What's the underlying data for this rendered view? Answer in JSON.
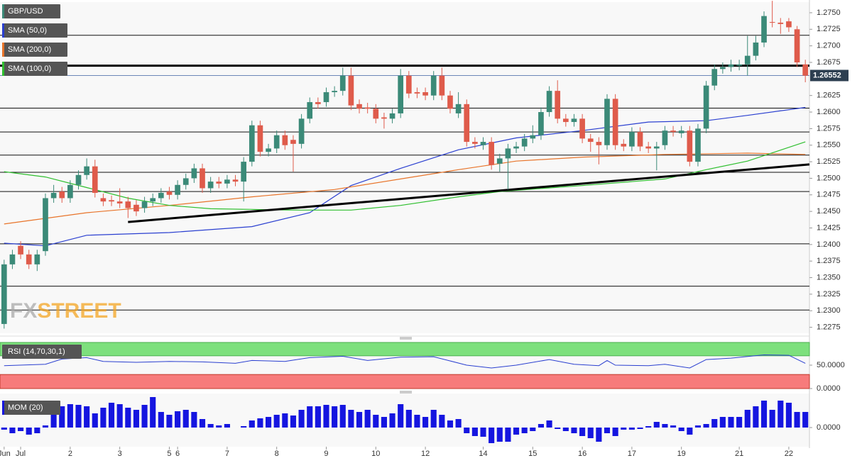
{
  "chart_data": [
    {
      "type": "candlestick",
      "name": "GBP/USD",
      "up_color": "#3b8a78",
      "down_color": "#df5b4b",
      "xlim": [
        -0.5,
        97.5
      ],
      "ylim": [
        1.2266,
        1.2766
      ],
      "xticks": [
        {
          "value": 0,
          "label": "Jun"
        },
        {
          "value": 2,
          "label": "Jul"
        },
        {
          "value": 8,
          "label": "2"
        },
        {
          "value": 14,
          "label": "3"
        },
        {
          "value": 20,
          "label": "5"
        },
        {
          "value": 21,
          "label": "6"
        },
        {
          "value": 27,
          "label": "7"
        },
        {
          "value": 33,
          "label": "8"
        },
        {
          "value": 39,
          "label": "9"
        },
        {
          "value": 45,
          "label": "10"
        },
        {
          "value": 51,
          "label": "12"
        },
        {
          "value": 58,
          "label": "14"
        },
        {
          "value": 64,
          "label": "15"
        },
        {
          "value": 70,
          "label": "16"
        },
        {
          "value": 76,
          "label": "17"
        },
        {
          "value": 82,
          "label": "19"
        },
        {
          "value": 89,
          "label": "21"
        },
        {
          "value": 95,
          "label": "22"
        }
      ],
      "yticks": [
        {
          "value": 1.275,
          "label": "1.2750"
        },
        1.2725,
        {
          "value": 1.27,
          "label": "1.2700"
        },
        1.2675,
        1.2625,
        {
          "value": 1.26,
          "label": "1.2600"
        },
        1.2575,
        {
          "value": 1.255,
          "label": "1.2550"
        },
        1.2525,
        {
          "value": 1.25,
          "label": "1.2500"
        },
        1.2475,
        {
          "value": 1.245,
          "label": "1.2450"
        },
        1.2425,
        {
          "value": 1.24,
          "label": "1.2400"
        },
        1.2375,
        {
          "value": 1.235,
          "label": "1.2350"
        },
        1.2325,
        {
          "value": 1.23,
          "label": "1.2300"
        },
        1.2275
      ],
      "levels": [
        1.2716,
        1.2606,
        1.257,
        1.2535,
        1.2509,
        1.248,
        1.2401,
        1.2337,
        1.2301
      ],
      "resistance": 1.267,
      "last_price": 1.26552,
      "trendline": {
        "x": [
          15,
          97.5
        ],
        "y": [
          1.2434,
          1.2521
        ]
      },
      "watermark": [
        "FX",
        "STREET"
      ],
      "open": [
        1.228,
        1.237,
        1.2398,
        1.2385,
        1.237,
        1.239,
        1.247,
        1.248,
        1.247,
        1.249,
        1.2505,
        1.2518,
        1.247,
        1.2467,
        1.2465,
        1.2465,
        1.246,
        1.2455,
        1.2465,
        1.247,
        1.248,
        1.2475,
        1.249,
        1.25,
        1.2515,
        1.2485,
        1.2495,
        1.2492,
        1.2498,
        1.2495,
        1.2525,
        1.258,
        1.254,
        1.2545,
        1.2565,
        1.2558,
        1.2552,
        1.259,
        1.2615,
        1.2615,
        1.263,
        1.2632,
        1.2655,
        1.2612,
        1.2607,
        1.2605,
        1.2592,
        1.259,
        1.2598,
        1.2655,
        1.263,
        1.263,
        1.2625,
        1.2655,
        1.2625,
        1.2598,
        1.2612,
        1.2555,
        1.255,
        1.2555,
        1.2522,
        1.253,
        1.2545,
        1.2548,
        1.256,
        1.2565,
        1.26,
        1.2632,
        1.259,
        1.2585,
        1.259,
        1.256,
        1.2555,
        1.255,
        1.262,
        1.2552,
        1.2548,
        1.257,
        1.2548,
        1.2545,
        1.255,
        1.2572,
        1.2568,
        1.2572,
        1.2525,
        1.2575,
        1.264,
        1.2665,
        1.2668,
        1.267,
        1.2672,
        1.2685,
        1.2705,
        1.2736,
        1.2735,
        1.2737,
        1.2725,
        1.2672
      ],
      "high": [
        1.2377,
        1.2392,
        1.2405,
        1.2392,
        1.2392,
        1.2477,
        1.249,
        1.2487,
        1.2497,
        1.2512,
        1.253,
        1.2528,
        1.2477,
        1.2474,
        1.2485,
        1.2472,
        1.2467,
        1.2472,
        1.2477,
        1.2485,
        1.2487,
        1.2497,
        1.2507,
        1.2522,
        1.2522,
        1.2502,
        1.2502,
        1.2505,
        1.2505,
        1.2532,
        1.2587,
        1.2587,
        1.2552,
        1.2572,
        1.2572,
        1.2565,
        1.2597,
        1.2622,
        1.2622,
        1.2637,
        1.2639,
        1.2667,
        1.2667,
        1.2619,
        1.2614,
        1.2612,
        1.2599,
        1.2605,
        1.2665,
        1.2662,
        1.2637,
        1.2637,
        1.2662,
        1.2667,
        1.2632,
        1.263,
        1.2619,
        1.2562,
        1.2562,
        1.2562,
        1.2537,
        1.2552,
        1.2555,
        1.2567,
        1.258,
        1.2607,
        1.2639,
        1.2648,
        1.2597,
        1.2597,
        1.2597,
        1.2567,
        1.2562,
        1.2627,
        1.2627,
        1.2559,
        1.2577,
        1.2577,
        1.2555,
        1.2555,
        1.2579,
        1.2579,
        1.2579,
        1.2579,
        1.2582,
        1.2647,
        1.2672,
        1.2675,
        1.2679,
        1.2679,
        1.2715,
        1.2715,
        1.2752,
        1.2768,
        1.2742,
        1.2742,
        1.273,
        1.2679
      ],
      "low": [
        1.2273,
        1.2363,
        1.2378,
        1.2363,
        1.236,
        1.2383,
        1.2463,
        1.2463,
        1.2463,
        1.2483,
        1.2498,
        1.2471,
        1.2458,
        1.2458,
        1.2455,
        1.244,
        1.2443,
        1.2448,
        1.2458,
        1.2463,
        1.2468,
        1.2468,
        1.2483,
        1.2493,
        1.2478,
        1.2478,
        1.2485,
        1.2485,
        1.2488,
        1.2465,
        1.2518,
        1.2533,
        1.2533,
        1.2538,
        1.2543,
        1.251,
        1.2545,
        1.2583,
        1.2605,
        1.2608,
        1.2623,
        1.2625,
        1.2603,
        1.2598,
        1.2598,
        1.2583,
        1.2575,
        1.2583,
        1.2591,
        1.2621,
        1.2621,
        1.2618,
        1.2618,
        1.2618,
        1.2598,
        1.2591,
        1.2548,
        1.2545,
        1.2543,
        1.2513,
        1.251,
        1.2483,
        1.2538,
        1.2541,
        1.2553,
        1.2558,
        1.2593,
        1.2583,
        1.2578,
        1.2578,
        1.2553,
        1.254,
        1.2521,
        1.2543,
        1.2543,
        1.2541,
        1.2541,
        1.2541,
        1.2538,
        1.2512,
        1.2543,
        1.2563,
        1.2561,
        1.2518,
        1.2518,
        1.2568,
        1.2633,
        1.2658,
        1.2661,
        1.2663,
        1.2655,
        1.2678,
        1.2698,
        1.2728,
        1.2718,
        1.2721,
        1.2668,
        1.2645
      ],
      "close": [
        1.237,
        1.2385,
        1.2385,
        1.237,
        1.2385,
        1.247,
        1.2478,
        1.247,
        1.249,
        1.2505,
        1.2518,
        1.2478,
        1.2465,
        1.2465,
        1.2462,
        1.2455,
        1.245,
        1.2465,
        1.247,
        1.2478,
        1.2475,
        1.249,
        1.25,
        1.2515,
        1.2485,
        1.2495,
        1.2492,
        1.2498,
        1.2495,
        1.2525,
        1.258,
        1.254,
        1.2545,
        1.2565,
        1.255,
        1.2552,
        1.259,
        1.2615,
        1.2612,
        1.263,
        1.2632,
        1.2655,
        1.261,
        1.2605,
        1.2605,
        1.259,
        1.259,
        1.2598,
        1.2655,
        1.2628,
        1.2628,
        1.2625,
        1.2655,
        1.2625,
        1.2605,
        1.2612,
        1.2555,
        1.2552,
        1.2555,
        1.252,
        1.253,
        1.2545,
        1.2548,
        1.256,
        1.2565,
        1.26,
        1.2632,
        1.259,
        1.2585,
        1.259,
        1.256,
        1.2555,
        1.255,
        1.262,
        1.255,
        1.2548,
        1.257,
        1.2548,
        1.2545,
        1.2548,
        1.2572,
        1.257,
        1.2572,
        1.2525,
        1.2575,
        1.264,
        1.2665,
        1.2668,
        1.2672,
        1.2672,
        1.2685,
        1.2705,
        1.2745,
        1.2735,
        1.2733,
        1.2728,
        1.2675,
        1.2655
      ],
      "sma": [
        {
          "name": "SMA (50,0)",
          "color": "#2a3fd0",
          "x": [
            0,
            5,
            10,
            20,
            30,
            37,
            42,
            48,
            55,
            62,
            70,
            78,
            85,
            90,
            97
          ],
          "values": [
            1.2402,
            1.2398,
            1.2414,
            1.2418,
            1.2427,
            1.2448,
            1.2489,
            1.2515,
            1.2543,
            1.2561,
            1.2572,
            1.2585,
            1.2587,
            1.2595,
            1.2607
          ]
        },
        {
          "name": "SMA (200,0)",
          "color": "#e8742a",
          "x": [
            0,
            10,
            20,
            30,
            40,
            48,
            55,
            62,
            70,
            80,
            90,
            97
          ],
          "values": [
            1.2431,
            1.2448,
            1.2459,
            1.2472,
            1.2483,
            1.2499,
            1.2513,
            1.2526,
            1.2532,
            1.2536,
            1.2538,
            1.2536
          ]
        },
        {
          "name": "SMA (100,0)",
          "color": "#2fbf2f",
          "x": [
            0,
            5,
            10,
            15,
            20,
            25,
            35,
            42,
            48,
            55,
            60,
            70,
            80,
            85,
            90,
            97
          ],
          "values": [
            1.251,
            1.2502,
            1.2486,
            1.247,
            1.2459,
            1.2454,
            1.2452,
            1.2452,
            1.2459,
            1.2472,
            1.248,
            1.2489,
            1.2499,
            1.2513,
            1.2526,
            1.2555
          ]
        }
      ]
    },
    {
      "type": "line",
      "name": "RSI (14,70,30,1)",
      "color": "#2a3fd0",
      "ylim": [
        0,
        100
      ],
      "yticks": [
        {
          "value": 50,
          "label": "50.0000"
        },
        {
          "value": 0,
          "label": "0.0000"
        }
      ],
      "overbought": 70,
      "oversold": 30,
      "x": [
        0,
        5,
        7,
        10,
        12,
        16,
        20,
        24,
        28,
        30,
        34,
        37,
        41,
        44,
        48,
        52,
        56,
        59,
        62,
        66,
        69,
        72,
        73,
        74,
        78,
        80,
        83,
        85,
        88,
        92,
        95,
        97
      ],
      "values": [
        49,
        52,
        63,
        66,
        58,
        56,
        58,
        57,
        54,
        60,
        58,
        66,
        69,
        60,
        67,
        68,
        50,
        44,
        50,
        62,
        52,
        49,
        60,
        50,
        49,
        52,
        44,
        62,
        65,
        72,
        71,
        54
      ]
    },
    {
      "type": "bar",
      "name": "MOM (20)",
      "color": "#1515e0",
      "ylim": [
        -0.0027,
        0.0048
      ],
      "yticks": [
        {
          "value": 0,
          "label": "0.0000"
        }
      ],
      "values": [
        -0.0003,
        -0.0008,
        -0.0005,
        -0.001,
        -0.0008,
        0.0003,
        0.0025,
        0.003,
        0.0033,
        0.0032,
        0.003,
        0.002,
        0.0028,
        0.0035,
        0.0033,
        0.0028,
        0.0025,
        0.0032,
        0.0043,
        0.0022,
        0.0018,
        0.0023,
        0.0025,
        0.0022,
        0.0012,
        0.0005,
        0.0003,
        0.0005,
        0,
        0.0002,
        0.001,
        0.0013,
        0.0015,
        0.0018,
        0.002,
        0.0017,
        0.0025,
        0.003,
        0.003,
        0.0032,
        0.003,
        0.0032,
        0.0025,
        0.0022,
        0.0025,
        0.0018,
        0.0015,
        0.002,
        0.0033,
        0.0025,
        0.0018,
        0.0015,
        0.0025,
        0.0018,
        0.001,
        0.0012,
        -0.0008,
        -0.0012,
        -0.0013,
        -0.0022,
        -0.002,
        -0.002,
        -0.001,
        -0.0008,
        -0.0005,
        0.0005,
        0.001,
        -0.0002,
        -0.0005,
        -0.0008,
        -0.0012,
        -0.0015,
        -0.002,
        -0.0008,
        -0.0012,
        -0.0003,
        -0.0003,
        -0.0002,
        0.0002,
        0.0008,
        0.0005,
        0.0003,
        -0.0005,
        -0.001,
        0.0003,
        0.0005,
        0.0012,
        0.0015,
        0.0015,
        0.0015,
        0.0025,
        0.003,
        0.0038,
        0.0025,
        0.0038,
        0.0035,
        0.0022,
        0.0022
      ]
    }
  ]
}
